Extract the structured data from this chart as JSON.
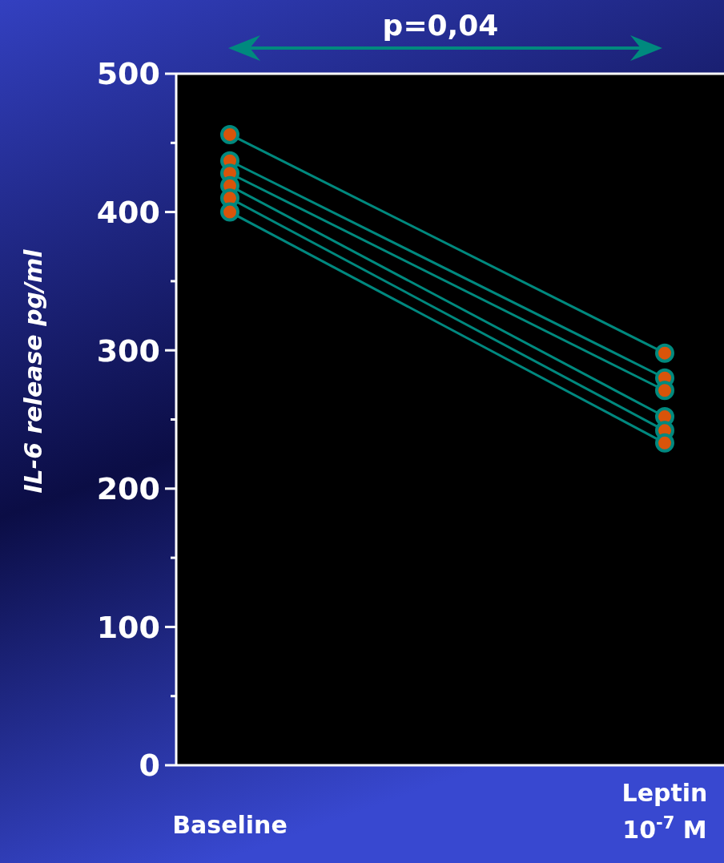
{
  "chart_data": {
    "type": "line",
    "ylabel": "IL-6 release pg/ml",
    "categories": [
      "Baseline",
      "Leptin 10$^{-7}$ M"
    ],
    "series": [
      {
        "color": "#00897e",
        "values": [
          456,
          298
        ]
      },
      {
        "color": "#00897f",
        "values": [
          437,
          280
        ]
      },
      {
        "color": "#008a7e",
        "values": [
          428,
          271
        ]
      },
      {
        "color": "#008a7f",
        "values": [
          419,
          252
        ]
      },
      {
        "color": "#00887e",
        "values": [
          410,
          242
        ]
      },
      {
        "color": "#00887f",
        "values": [
          400,
          233
        ]
      }
    ],
    "ylim": [
      0,
      500
    ],
    "yticks": [
      0,
      {
        "value": 50,
        "label": null
      },
      100,
      {
        "value": 150,
        "label": null
      },
      200,
      {
        "value": 250,
        "label": null
      },
      300,
      {
        "value": 350,
        "label": null
      },
      400,
      {
        "value": 450,
        "label": null
      },
      500
    ],
    "marker": "circle",
    "line_style": "solid",
    "grid": false,
    "annotations": [
      "p=0,04"
    ]
  }
}
